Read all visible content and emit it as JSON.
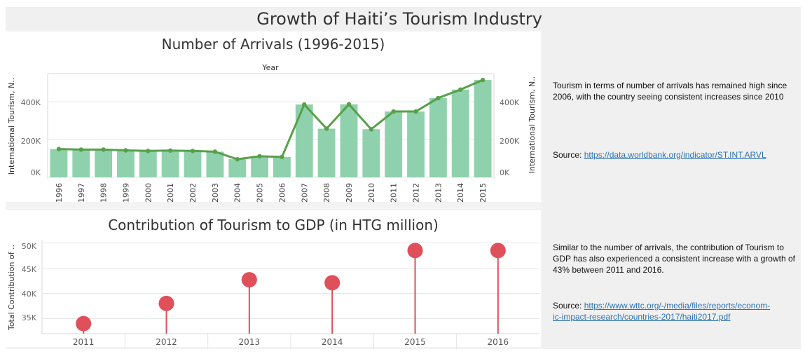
{
  "page": {
    "title": "Growth of Haiti’s Tourism Industry"
  },
  "arrivals_panel": {
    "title": "Number of Arrivals (1996-2015)",
    "header": "Year",
    "left_axis_label": "International Tourism, N..",
    "right_axis_label": "International Tourism, N..",
    "y_ticks": [
      "400K",
      "200K",
      "0K"
    ]
  },
  "gdp_panel": {
    "title": "Contribution of Tourism to GDP (in HTG million)",
    "y_axis_label": "Total Contribution of ..",
    "y_ticks": [
      "50K",
      "45K",
      "40K",
      "35K"
    ]
  },
  "notes": {
    "arrivals_text": "Tourism in terms of number of arrivals has remained high since 2006, with the country seeing consistent increases since 2010",
    "arrivals_source_label": "Source: ",
    "arrivals_source_link": "https://data.worldbank.org/indicator/ST.INT.ARVL",
    "gdp_text": "Similar to the number of arrivals, the contribution of Tourism to GDP has also experienced a consistent increase with a growth of  43% between 2011 and 2016.",
    "gdp_source_label": "Source: ",
    "gdp_source_link_1": "https://www.wttc.org/-/media/files/reports/econom-",
    "gdp_source_link_2": "ic-impact-research/countries-2017/haiti2017.pdf"
  },
  "colors": {
    "bar": "#8fd1ac",
    "line": "#57a04a",
    "lollipop": "#e0505a",
    "grid": "#e6e6e6"
  },
  "chart_data": [
    {
      "type": "bar",
      "title": "Number of Arrivals (1996-2015)",
      "xlabel": "Year",
      "ylabel": "International Tourism, N..",
      "categories": [
        "1996",
        "1997",
        "1998",
        "1999",
        "2000",
        "2001",
        "2002",
        "2003",
        "2004",
        "2005",
        "2006",
        "2007",
        "2008",
        "2009",
        "2010",
        "2011",
        "2012",
        "2013",
        "2014",
        "2015"
      ],
      "series": [
        {
          "values": [
            150000,
            147000,
            147000,
            143000,
            140000,
            142000,
            140000,
            136000,
            96000,
            112000,
            108000,
            386000,
            258000,
            387000,
            255000,
            349000,
            349000,
            420000,
            465000,
            516000
          ]
        },
        {
          "type": "line",
          "values": [
            150000,
            147000,
            147000,
            143000,
            140000,
            142000,
            140000,
            136000,
            96000,
            112000,
            108000,
            386000,
            258000,
            387000,
            255000,
            349000,
            349000,
            420000,
            465000,
            516000
          ]
        }
      ],
      "ylim": [
        0,
        520000
      ],
      "grid": true
    },
    {
      "type": "lollipop",
      "title": "Contribution of Tourism to GDP (in HTG million)",
      "ylabel": "Total Contribution of ..",
      "categories": [
        "2011",
        "2012",
        "2013",
        "2014",
        "2015",
        "2016"
      ],
      "values": [
        34000,
        38000,
        42700,
        42100,
        48500,
        48500
      ],
      "ylim": [
        32000,
        50500
      ],
      "grid": true
    }
  ]
}
